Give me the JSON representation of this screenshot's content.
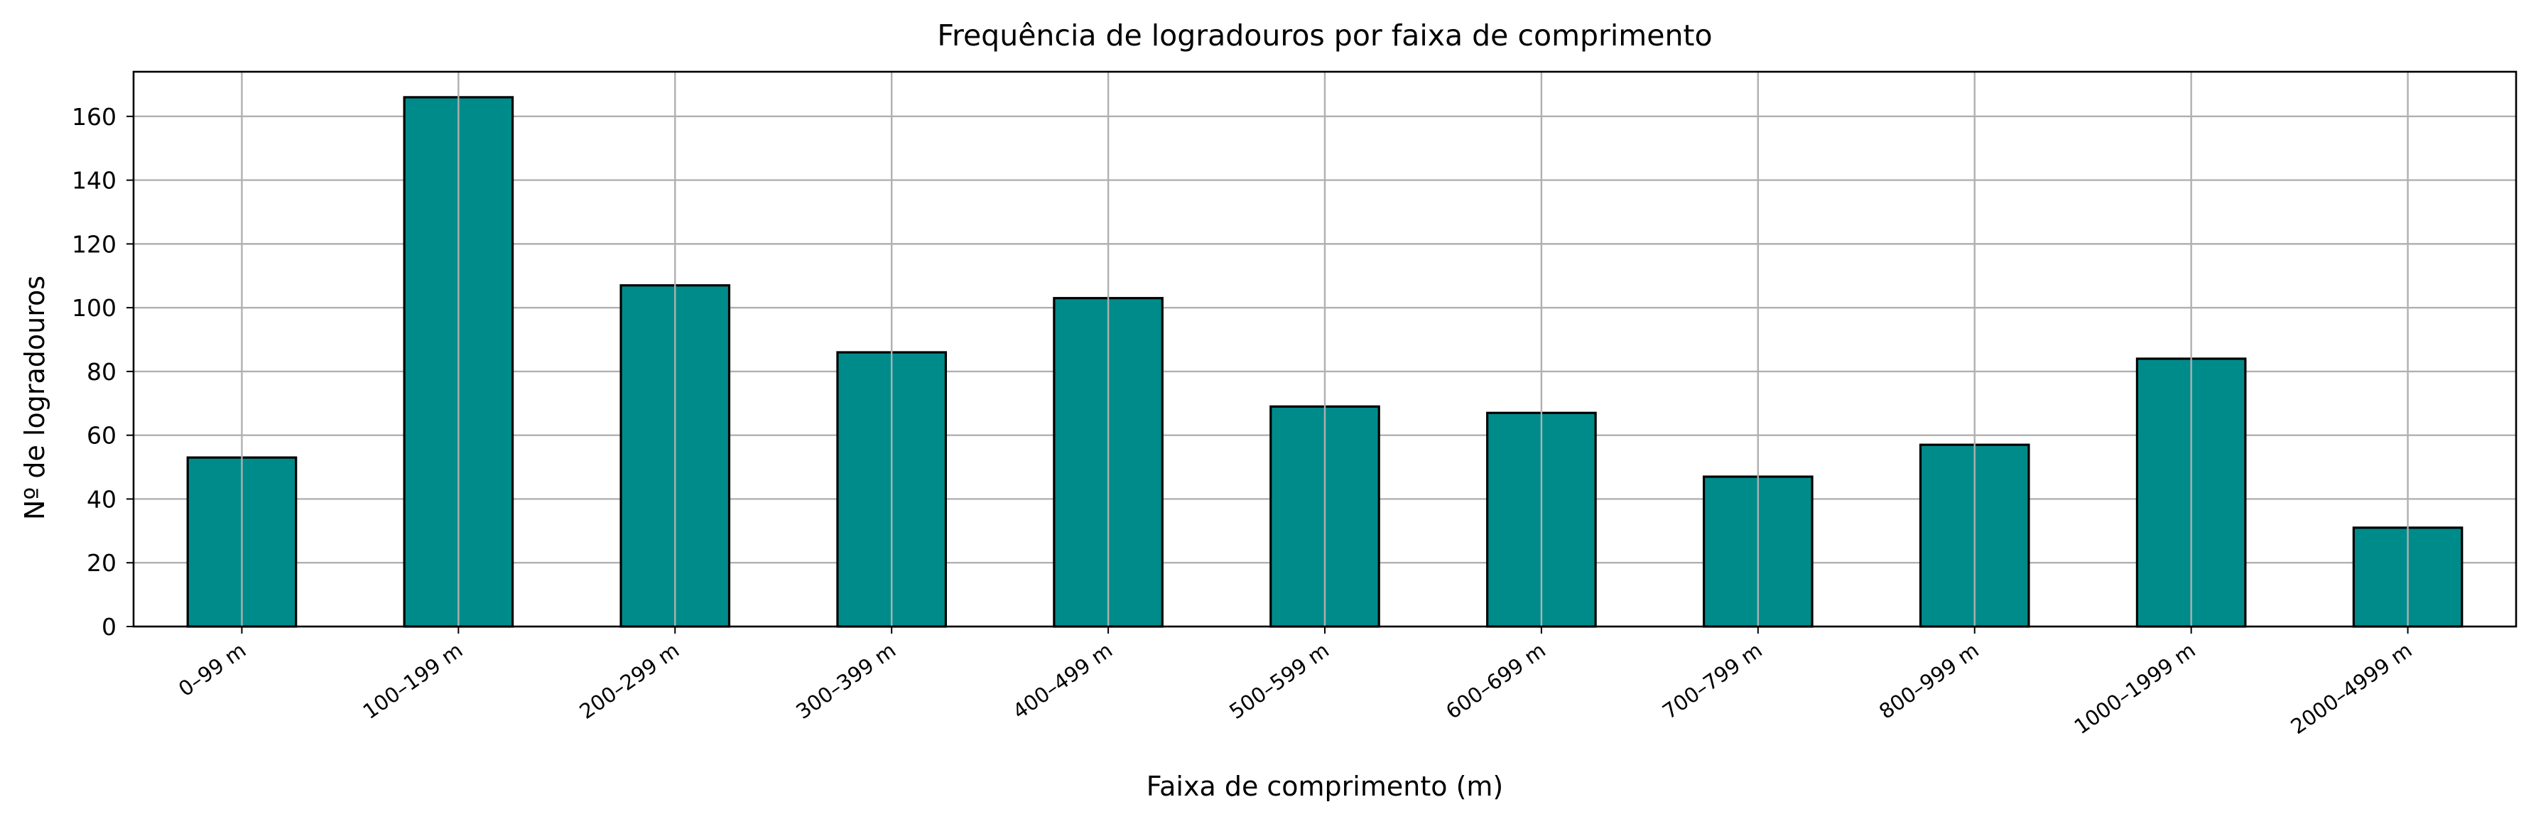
{
  "chart_data": {
    "type": "bar",
    "title": "Frequência de logradouros por faixa de comprimento",
    "xlabel": "Faixa de comprimento (m)",
    "ylabel": "Nº de logradouros",
    "categories": [
      "0–99 m",
      "100–199 m",
      "200–299 m",
      "300–399 m",
      "400–499 m",
      "500–599 m",
      "600–699 m",
      "700–799 m",
      "800–999 m",
      "1000–1999 m",
      "2000–4999 m"
    ],
    "values": [
      53,
      166,
      107,
      86,
      103,
      69,
      67,
      47,
      57,
      84,
      31
    ],
    "ylim": [
      0,
      174
    ],
    "yticks": [
      0,
      20,
      40,
      60,
      80,
      100,
      120,
      140,
      160
    ],
    "grid": true,
    "bar_color": "#008b8b",
    "edge_color": "#000000"
  }
}
